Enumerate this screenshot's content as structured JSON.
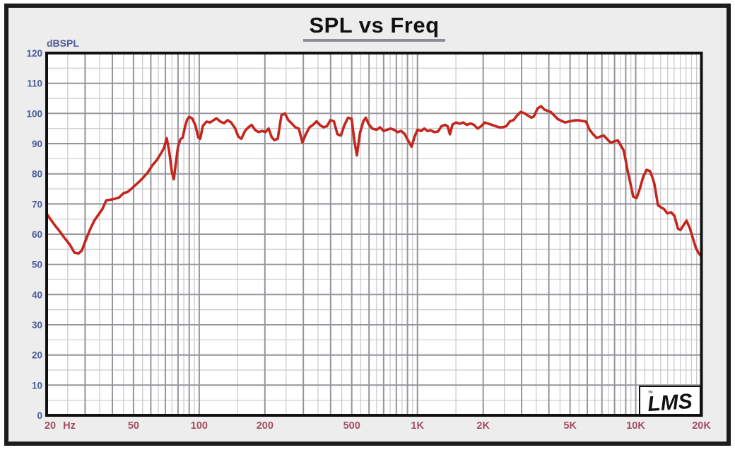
{
  "title": "SPL vs Freq",
  "y_axis_label": "dBSPL",
  "x_axis_unit": "Hz",
  "logo": {
    "text": "LMS",
    "tm": "™"
  },
  "colors": {
    "curve": "#c4261e",
    "x_tick": "#a34d5f",
    "y_tick": "#4d5c99",
    "grid_major": "#95959b",
    "grid_minor": "#c9c9cd",
    "plot_border": "#111111",
    "frame_border": "#1c1c1c",
    "inner_background": "#ededed",
    "plot_background": "#ffffff",
    "title_underline": "#8d8d98",
    "logo_ink": "#111111"
  },
  "chart_data": {
    "type": "line",
    "title": "SPL vs Freq",
    "xlabel": "Hz",
    "ylabel": "dBSPL",
    "x_scale": "log",
    "xlim": [
      20,
      20000
    ],
    "ylim": [
      0,
      120
    ],
    "grid": "on",
    "y_ticks": [
      {
        "v": 120,
        "label": "120"
      },
      {
        "v": 110,
        "label": "110"
      },
      {
        "v": 100,
        "label": "100"
      },
      {
        "v": 90,
        "label": "90"
      },
      {
        "v": 80,
        "label": "80"
      },
      {
        "v": 70,
        "label": "70"
      },
      {
        "v": 60,
        "label": "60"
      },
      {
        "v": 50,
        "label": "50"
      },
      {
        "v": 40,
        "label": "40"
      },
      {
        "v": 30,
        "label": "30"
      },
      {
        "v": 20,
        "label": "20"
      },
      {
        "v": 10,
        "label": "10"
      },
      {
        "v": 0,
        "label": "0"
      }
    ],
    "x_ticks": [
      {
        "f": 20,
        "label": "20",
        "dx": 5
      },
      {
        "f": 50,
        "label": "50"
      },
      {
        "f": 100,
        "label": "100"
      },
      {
        "f": 200,
        "label": "200"
      },
      {
        "f": 500,
        "label": "500"
      },
      {
        "f": 1000,
        "label": "1K"
      },
      {
        "f": 2000,
        "label": "2K"
      },
      {
        "f": 5000,
        "label": "5K"
      },
      {
        "f": 10000,
        "label": "10K"
      },
      {
        "f": 20000,
        "label": "20K"
      }
    ],
    "series": [
      {
        "name": "SPL",
        "color": "#c4261e",
        "points": [
          [
            20,
            66.8
          ],
          [
            21,
            64.6
          ],
          [
            22,
            62.6
          ],
          [
            23,
            60.9
          ],
          [
            24,
            59.0
          ],
          [
            25.5,
            56.6
          ],
          [
            26.8,
            53.9
          ],
          [
            28,
            53.6
          ],
          [
            29,
            54.6
          ],
          [
            30,
            57.5
          ],
          [
            31.5,
            61.3
          ],
          [
            33,
            64.4
          ],
          [
            34.5,
            66.4
          ],
          [
            36,
            68.3
          ],
          [
            37.5,
            71.2
          ],
          [
            39,
            71.4
          ],
          [
            41,
            71.7
          ],
          [
            43,
            72.2
          ],
          [
            45,
            73.6
          ],
          [
            47,
            74.0
          ],
          [
            49,
            75.1
          ],
          [
            52,
            76.8
          ],
          [
            55,
            78.5
          ],
          [
            58,
            80.4
          ],
          [
            61,
            82.8
          ],
          [
            64,
            84.6
          ],
          [
            67,
            86.9
          ],
          [
            69,
            88.6
          ],
          [
            71,
            91.8
          ],
          [
            73,
            87.0
          ],
          [
            75,
            80.5
          ],
          [
            76.5,
            78.2
          ],
          [
            78,
            83.0
          ],
          [
            80,
            89.0
          ],
          [
            82,
            91.4
          ],
          [
            84,
            92.0
          ],
          [
            86,
            95.4
          ],
          [
            88,
            97.9
          ],
          [
            90,
            98.9
          ],
          [
            93,
            98.3
          ],
          [
            96,
            96.1
          ],
          [
            99,
            92.1
          ],
          [
            101,
            91.6
          ],
          [
            104,
            95.9
          ],
          [
            108,
            97.3
          ],
          [
            112,
            97.0
          ],
          [
            116,
            97.7
          ],
          [
            120,
            98.4
          ],
          [
            125,
            97.3
          ],
          [
            130,
            96.8
          ],
          [
            135,
            97.8
          ],
          [
            140,
            97.0
          ],
          [
            146,
            95.1
          ],
          [
            151,
            92.4
          ],
          [
            156,
            91.6
          ],
          [
            162,
            94.2
          ],
          [
            168,
            95.4
          ],
          [
            174,
            96.2
          ],
          [
            180,
            94.6
          ],
          [
            187,
            93.8
          ],
          [
            194,
            94.2
          ],
          [
            201,
            93.8
          ],
          [
            208,
            95.0
          ],
          [
            215,
            92.1
          ],
          [
            221,
            91.2
          ],
          [
            229,
            91.6
          ],
          [
            238,
            99.4
          ],
          [
            247,
            100.0
          ],
          [
            256,
            97.8
          ],
          [
            266,
            96.6
          ],
          [
            276,
            95.4
          ],
          [
            286,
            95.0
          ],
          [
            297,
            90.4
          ],
          [
            308,
            93.1
          ],
          [
            320,
            95.4
          ],
          [
            332,
            96.2
          ],
          [
            345,
            97.4
          ],
          [
            357,
            96.2
          ],
          [
            371,
            95.4
          ],
          [
            385,
            95.8
          ],
          [
            399,
            97.8
          ],
          [
            414,
            97.4
          ],
          [
            430,
            93.1
          ],
          [
            446,
            92.7
          ],
          [
            463,
            96.2
          ],
          [
            481,
            98.6
          ],
          [
            499,
            98.2
          ],
          [
            515,
            90.5
          ],
          [
            528,
            86.1
          ],
          [
            545,
            93.5
          ],
          [
            565,
            97.4
          ],
          [
            580,
            98.6
          ],
          [
            596,
            96.6
          ],
          [
            620,
            95.0
          ],
          [
            650,
            94.6
          ],
          [
            674,
            95.4
          ],
          [
            700,
            94.2
          ],
          [
            726,
            94.6
          ],
          [
            753,
            95.0
          ],
          [
            781,
            94.6
          ],
          [
            811,
            93.8
          ],
          [
            841,
            94.2
          ],
          [
            873,
            93.2
          ],
          [
            906,
            91.0
          ],
          [
            940,
            89.0
          ],
          [
            970,
            92.3
          ],
          [
            1000,
            94.6
          ],
          [
            1040,
            94.2
          ],
          [
            1075,
            95.0
          ],
          [
            1110,
            94.2
          ],
          [
            1152,
            94.4
          ],
          [
            1196,
            93.8
          ],
          [
            1242,
            94.0
          ],
          [
            1289,
            95.8
          ],
          [
            1339,
            96.2
          ],
          [
            1373,
            95.8
          ],
          [
            1409,
            93.1
          ],
          [
            1446,
            96.3
          ],
          [
            1503,
            97.0
          ],
          [
            1561,
            96.6
          ],
          [
            1621,
            97.0
          ],
          [
            1684,
            96.2
          ],
          [
            1749,
            96.7
          ],
          [
            1816,
            96.2
          ],
          [
            1886,
            95.0
          ],
          [
            1959,
            95.8
          ],
          [
            2035,
            97.0
          ],
          [
            2113,
            96.6
          ],
          [
            2195,
            96.2
          ],
          [
            2279,
            95.8
          ],
          [
            2367,
            95.4
          ],
          [
            2459,
            95.4
          ],
          [
            2554,
            95.8
          ],
          [
            2652,
            97.4
          ],
          [
            2754,
            97.8
          ],
          [
            2860,
            99.3
          ],
          [
            2971,
            100.5
          ],
          [
            3085,
            100.1
          ],
          [
            3204,
            99.3
          ],
          [
            3328,
            98.6
          ],
          [
            3413,
            99.0
          ],
          [
            3546,
            101.6
          ],
          [
            3684,
            102.4
          ],
          [
            3826,
            101.2
          ],
          [
            3974,
            100.8
          ],
          [
            4077,
            100.5
          ],
          [
            4234,
            99.3
          ],
          [
            4397,
            98.1
          ],
          [
            4610,
            97.4
          ],
          [
            4747,
            97.0
          ],
          [
            5000,
            97.4
          ],
          [
            5250,
            97.7
          ],
          [
            5507,
            97.7
          ],
          [
            5922,
            97.3
          ],
          [
            6146,
            94.6
          ],
          [
            6378,
            93.1
          ],
          [
            6620,
            91.9
          ],
          [
            6870,
            92.3
          ],
          [
            7130,
            92.7
          ],
          [
            7400,
            91.5
          ],
          [
            7680,
            90.3
          ],
          [
            7970,
            90.7
          ],
          [
            8272,
            91.1
          ],
          [
            8585,
            89.1
          ],
          [
            8787,
            87.9
          ],
          [
            9000,
            84.4
          ],
          [
            9211,
            80.5
          ],
          [
            9420,
            77.4
          ],
          [
            9750,
            72.4
          ],
          [
            10090,
            72.0
          ],
          [
            10450,
            75.1
          ],
          [
            10820,
            79.0
          ],
          [
            11210,
            81.3
          ],
          [
            11620,
            80.9
          ],
          [
            11900,
            79.0
          ],
          [
            12180,
            76.6
          ],
          [
            12640,
            69.6
          ],
          [
            13120,
            68.8
          ],
          [
            13450,
            68.4
          ],
          [
            13960,
            66.9
          ],
          [
            14500,
            67.3
          ],
          [
            15040,
            66.1
          ],
          [
            15620,
            61.8
          ],
          [
            16030,
            61.4
          ],
          [
            17090,
            64.5
          ],
          [
            17740,
            61.8
          ],
          [
            18410,
            57.9
          ],
          [
            18860,
            55.5
          ],
          [
            19400,
            53.8
          ],
          [
            19900,
            52.8
          ]
        ]
      }
    ]
  }
}
